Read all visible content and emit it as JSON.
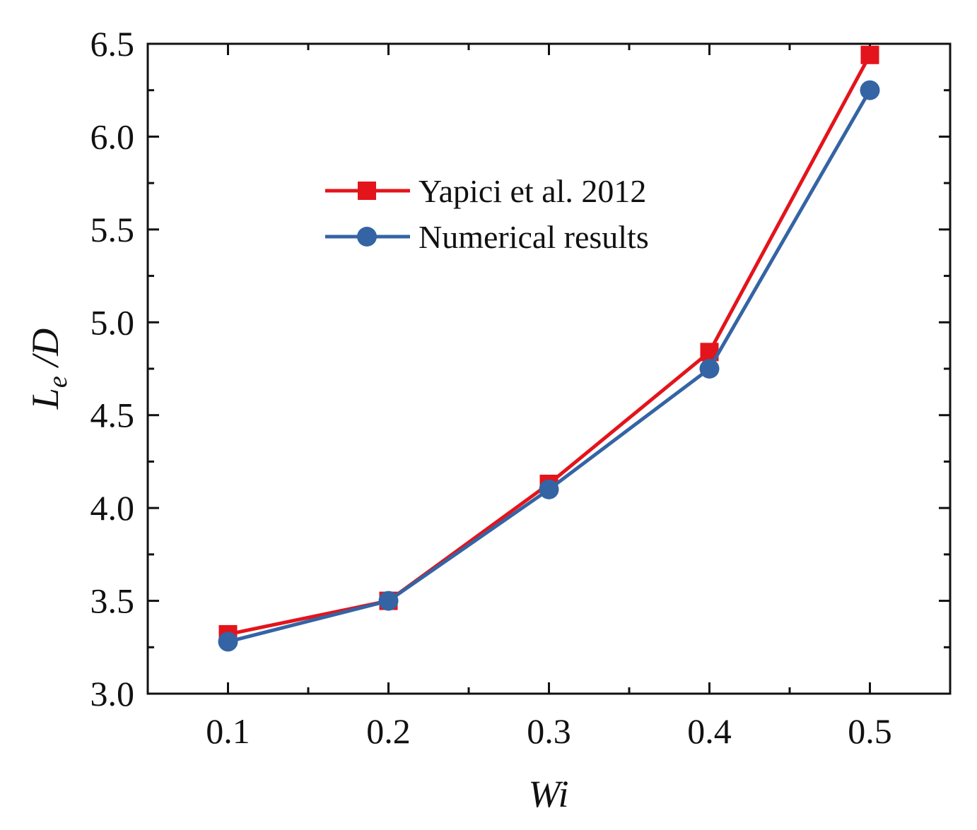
{
  "chart_data": {
    "type": "line",
    "title": "",
    "x": [
      0.1,
      0.2,
      0.3,
      0.4,
      0.5
    ],
    "xlim": [
      0.05,
      0.55
    ],
    "ylim": [
      3.0,
      6.5
    ],
    "x_ticks": [
      "0.1",
      "0.2",
      "0.3",
      "0.4",
      "0.5"
    ],
    "y_ticks": [
      "3.0",
      "3.5",
      "4.0",
      "4.5",
      "5.0",
      "5.5",
      "6.0",
      "6.5"
    ],
    "xlabel": "Wi",
    "ylabel_main": "L",
    "ylabel_sub": "e",
    "ylabel_tail": " /D",
    "legend_position": "upper-middle",
    "series": [
      {
        "name": "Yapici et al. 2012",
        "marker": "square",
        "color": "#e3141b",
        "values": [
          3.32,
          3.5,
          4.13,
          4.84,
          6.44
        ]
      },
      {
        "name": "Numerical results",
        "marker": "circle",
        "color": "#3464a4",
        "values": [
          3.28,
          3.5,
          4.1,
          4.75,
          6.25
        ]
      }
    ]
  }
}
